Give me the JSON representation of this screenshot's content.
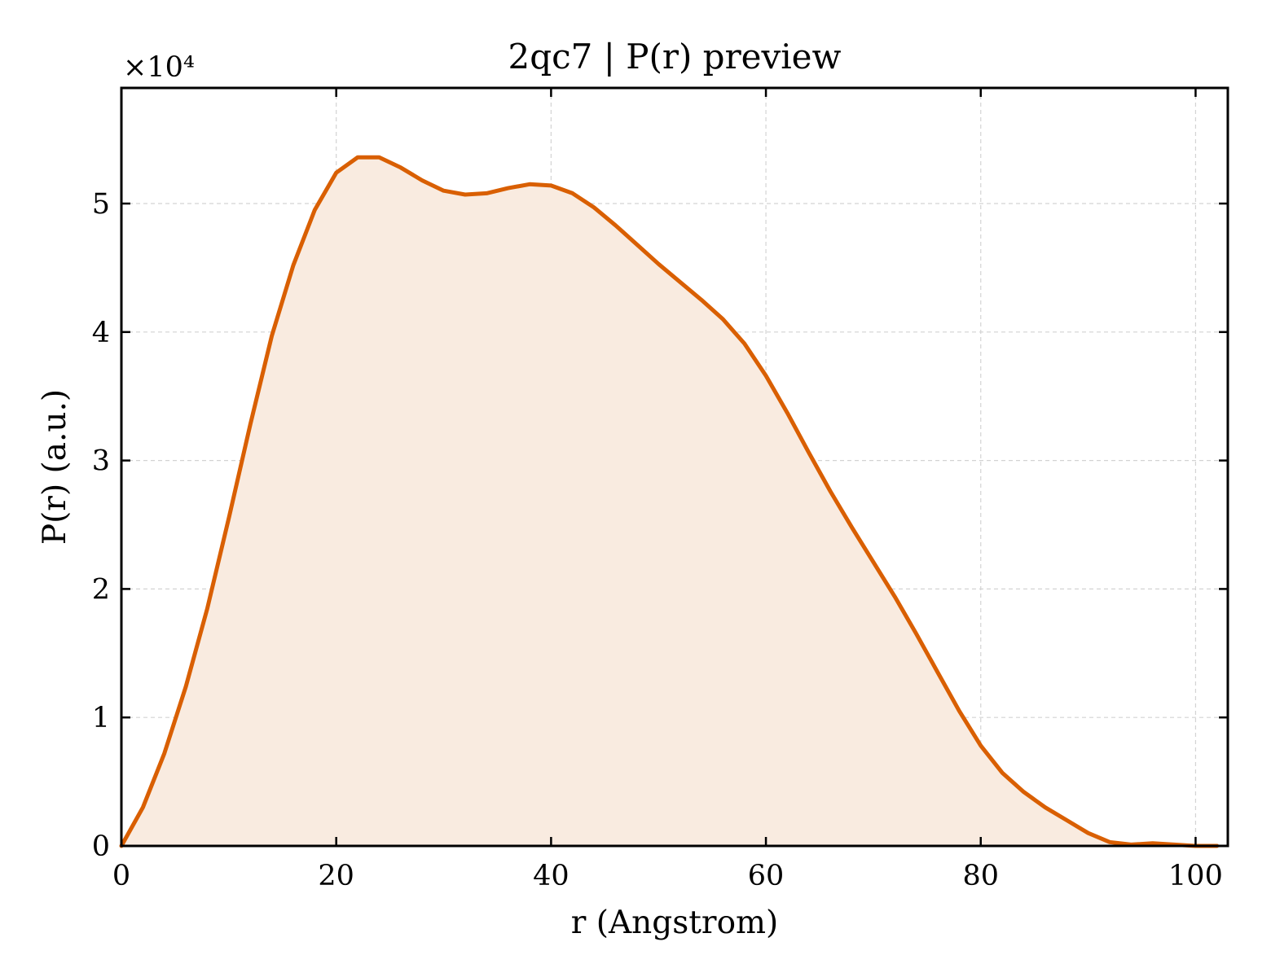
{
  "chart_data": {
    "type": "area",
    "title": "2qc7 | P(r) preview",
    "xlabel": "r (Angstrom)",
    "ylabel": "P(r) (a.u.)",
    "y_multiplier_label": "×10⁴",
    "xlim": [
      0,
      103
    ],
    "ylim": [
      0,
      5.9
    ],
    "x_ticks": [
      0,
      20,
      40,
      60,
      80,
      100
    ],
    "x_tick_labels": [
      "0",
      "20",
      "40",
      "60",
      "80",
      "100"
    ],
    "y_ticks": [
      0,
      1,
      2,
      3,
      4,
      5
    ],
    "y_tick_labels": [
      "0",
      "1",
      "2",
      "3",
      "4",
      "5"
    ],
    "grid": true,
    "legend": false,
    "colors": {
      "line": "#d95f02",
      "fill": "#f9ebe0",
      "grid": "#d3d3d3",
      "axes": "#000000"
    },
    "series": [
      {
        "x": [
          0,
          2,
          4,
          6,
          8,
          10,
          12,
          14,
          16,
          18,
          20,
          22,
          24,
          26,
          28,
          30,
          32,
          34,
          36,
          38,
          40,
          42,
          44,
          46,
          48,
          50,
          52,
          54,
          56,
          58,
          60,
          62,
          64,
          66,
          68,
          70,
          72,
          74,
          76,
          78,
          80,
          82,
          84,
          86,
          88,
          90,
          92,
          94,
          96,
          98,
          100,
          102
        ],
        "values": [
          0.0,
          0.3,
          0.72,
          1.24,
          1.85,
          2.55,
          3.28,
          3.97,
          4.52,
          4.95,
          5.24,
          5.36,
          5.36,
          5.28,
          5.18,
          5.1,
          5.07,
          5.08,
          5.12,
          5.15,
          5.14,
          5.08,
          4.97,
          4.83,
          4.68,
          4.53,
          4.39,
          4.25,
          4.1,
          3.91,
          3.66,
          3.37,
          3.06,
          2.76,
          2.48,
          2.21,
          1.94,
          1.65,
          1.35,
          1.05,
          0.78,
          0.57,
          0.42,
          0.3,
          0.2,
          0.1,
          0.03,
          0.01,
          0.02,
          0.01,
          0.0,
          0.0
        ]
      }
    ]
  }
}
